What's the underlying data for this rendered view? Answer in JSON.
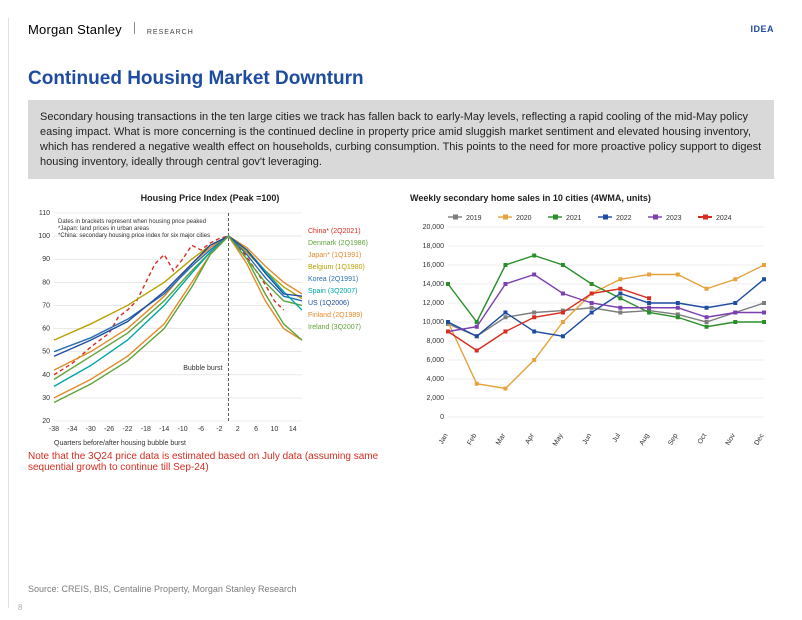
{
  "header": {
    "brand_main": "Morgan Stanley",
    "brand_sub": "RESEARCH",
    "right_mark": "IDEA"
  },
  "title": {
    "text": "Continued Housing Market Downturn",
    "color": "#1e4ca0"
  },
  "summary": {
    "text": "Secondary housing transactions in the ten large cities we track has fallen back to early-May levels, reflecting a rapid cooling of the mid-May policy easing impact. What is more concerning is the continued decline in property price amid sluggish market sentiment and elevated housing inventory, which has rendered a negative wealth effect on households, curbing consumption. This points to the need for more proactive policy support to digest housing inventory, ideally through central gov't leveraging.",
    "bg": "#d9d9d9"
  },
  "left_chart": {
    "type": "line",
    "title": "Housing Price Index (Peak =100)",
    "xlim": [
      -38,
      16
    ],
    "ylim": [
      20,
      110
    ],
    "ytick_step": 10,
    "xticks": [
      -38,
      -34,
      -30,
      -26,
      -22,
      -18,
      -14,
      -10,
      -6,
      -2,
      2,
      6,
      10,
      14
    ],
    "xlabel": "Quarters before/after housing bubble burst",
    "grid_color": "#dcdcdc",
    "bubble_x": 0,
    "bubble_label": "Bubble burst",
    "dates_note": "Dates in brackets represent when housing price peaked\n*Japan: land prices in urban areas\n*China: secondary housing price index for six major cities",
    "footnote": "Note that the 3Q24 price data is estimated based on July data (assuming same sequential growth to continue till Sep-24)",
    "footnote_color": "#d62d20",
    "legend": [
      {
        "label": "China* (2Q2021)",
        "color": "#d62d20",
        "dash": "4 3",
        "width": 1.8
      },
      {
        "label": "Denmark (2Q1986)",
        "color": "#5fa33a"
      },
      {
        "label": "Japan* (1Q1991)",
        "color": "#e38b2a"
      },
      {
        "label": "Belgium (1Q1980)",
        "color": "#b8a100"
      },
      {
        "label": "Korea (2Q1991)",
        "color": "#2a6fb0"
      },
      {
        "label": "Spain (3Q2007)",
        "color": "#00a6a6"
      },
      {
        "label": "US (1Q2006)",
        "color": "#1e4ca0"
      },
      {
        "label": "Finland (2Q1989)",
        "color": "#e38b2a"
      },
      {
        "label": "Ireland (3Q2007)",
        "color": "#5fa33a"
      }
    ],
    "series": [
      {
        "name": "China",
        "color": "#d62d20",
        "dash": "4 3",
        "width": 1.8,
        "pts": [
          [
            -38,
            40
          ],
          [
            -34,
            45
          ],
          [
            -30,
            52
          ],
          [
            -26,
            58
          ],
          [
            -24,
            65
          ],
          [
            -22,
            68
          ],
          [
            -20,
            72
          ],
          [
            -18,
            80
          ],
          [
            -16,
            88
          ],
          [
            -14,
            92
          ],
          [
            -12,
            85
          ],
          [
            -10,
            90
          ],
          [
            -8,
            96
          ],
          [
            -6,
            94
          ],
          [
            -4,
            97
          ],
          [
            -2,
            99
          ],
          [
            0,
            100
          ],
          [
            2,
            96
          ],
          [
            4,
            91
          ],
          [
            6,
            85
          ],
          [
            8,
            79
          ],
          [
            10,
            72
          ],
          [
            12,
            68
          ]
        ]
      },
      {
        "name": "Denmark",
        "color": "#5fa33a",
        "pts": [
          [
            -38,
            38
          ],
          [
            -30,
            48
          ],
          [
            -22,
            58
          ],
          [
            -14,
            72
          ],
          [
            -8,
            85
          ],
          [
            -4,
            93
          ],
          [
            0,
            100
          ],
          [
            4,
            90
          ],
          [
            8,
            80
          ],
          [
            12,
            72
          ],
          [
            16,
            70
          ]
        ]
      },
      {
        "name": "Japan",
        "color": "#e38b2a",
        "pts": [
          [
            -38,
            42
          ],
          [
            -30,
            50
          ],
          [
            -22,
            60
          ],
          [
            -14,
            74
          ],
          [
            -8,
            88
          ],
          [
            -4,
            95
          ],
          [
            0,
            100
          ],
          [
            4,
            95
          ],
          [
            8,
            87
          ],
          [
            12,
            80
          ],
          [
            16,
            75
          ]
        ]
      },
      {
        "name": "Belgium",
        "color": "#b8a100",
        "pts": [
          [
            -38,
            55
          ],
          [
            -30,
            62
          ],
          [
            -22,
            70
          ],
          [
            -14,
            80
          ],
          [
            -8,
            90
          ],
          [
            -4,
            96
          ],
          [
            0,
            100
          ],
          [
            4,
            93
          ],
          [
            8,
            85
          ],
          [
            12,
            78
          ],
          [
            16,
            73
          ]
        ]
      },
      {
        "name": "Korea",
        "color": "#2a6fb0",
        "pts": [
          [
            -38,
            50
          ],
          [
            -30,
            56
          ],
          [
            -22,
            64
          ],
          [
            -14,
            75
          ],
          [
            -8,
            87
          ],
          [
            -4,
            94
          ],
          [
            0,
            100
          ],
          [
            4,
            92
          ],
          [
            8,
            82
          ],
          [
            12,
            74
          ],
          [
            16,
            72
          ]
        ]
      },
      {
        "name": "Spain",
        "color": "#00a6a6",
        "pts": [
          [
            -38,
            35
          ],
          [
            -30,
            44
          ],
          [
            -22,
            55
          ],
          [
            -14,
            70
          ],
          [
            -8,
            84
          ],
          [
            -4,
            93
          ],
          [
            0,
            100
          ],
          [
            4,
            94
          ],
          [
            8,
            85
          ],
          [
            12,
            76
          ],
          [
            16,
            68
          ]
        ]
      },
      {
        "name": "US",
        "color": "#1e4ca0",
        "pts": [
          [
            -38,
            48
          ],
          [
            -30,
            55
          ],
          [
            -22,
            63
          ],
          [
            -14,
            76
          ],
          [
            -8,
            88
          ],
          [
            -4,
            96
          ],
          [
            0,
            100
          ],
          [
            4,
            94
          ],
          [
            8,
            84
          ],
          [
            12,
            75
          ],
          [
            16,
            74
          ]
        ]
      },
      {
        "name": "Finland",
        "color": "#e38b2a",
        "pts": [
          [
            -38,
            30
          ],
          [
            -30,
            38
          ],
          [
            -22,
            48
          ],
          [
            -14,
            62
          ],
          [
            -8,
            80
          ],
          [
            -4,
            92
          ],
          [
            0,
            100
          ],
          [
            4,
            88
          ],
          [
            8,
            72
          ],
          [
            12,
            60
          ],
          [
            16,
            55
          ]
        ]
      },
      {
        "name": "Ireland",
        "color": "#5fa33a",
        "pts": [
          [
            -38,
            28
          ],
          [
            -30,
            36
          ],
          [
            -22,
            46
          ],
          [
            -14,
            60
          ],
          [
            -8,
            78
          ],
          [
            -4,
            92
          ],
          [
            0,
            100
          ],
          [
            4,
            90
          ],
          [
            8,
            75
          ],
          [
            12,
            62
          ],
          [
            16,
            55
          ]
        ]
      }
    ]
  },
  "right_chart": {
    "type": "line",
    "title": "Weekly secondary home sales in 10 cities (4WMA, units)",
    "xlim": [
      1,
      12
    ],
    "ylim": [
      0,
      20000
    ],
    "ytick_step": 2000,
    "months": [
      "Jan",
      "Feb",
      "Mar",
      "Apr",
      "May",
      "Jun",
      "Jul",
      "Aug",
      "Sep",
      "Oct",
      "Nov",
      "Dec"
    ],
    "grid_color": "#dcdcdc",
    "legend": [
      {
        "label": "2019",
        "color": "#7d7d7d",
        "marker": "diamond"
      },
      {
        "label": "2020",
        "color": "#e6a23c",
        "marker": "triangle"
      },
      {
        "label": "2021",
        "color": "#2a8f2a",
        "marker": "circle"
      },
      {
        "label": "2022",
        "color": "#1e4ca0",
        "marker": "square"
      },
      {
        "label": "2023",
        "color": "#7b3fb0",
        "marker": "square"
      },
      {
        "label": "2024",
        "color": "#d62d20",
        "marker": "square",
        "width": 2.0
      }
    ],
    "series": [
      {
        "name": "2019",
        "color": "#7d7d7d",
        "pts": [
          [
            1,
            9800
          ],
          [
            2,
            8500
          ],
          [
            3,
            10500
          ],
          [
            4,
            11000
          ],
          [
            5,
            11200
          ],
          [
            6,
            11500
          ],
          [
            7,
            11000
          ],
          [
            8,
            11200
          ],
          [
            9,
            10800
          ],
          [
            10,
            10000
          ],
          [
            11,
            11000
          ],
          [
            12,
            12000
          ]
        ]
      },
      {
        "name": "2020",
        "color": "#e6a23c",
        "pts": [
          [
            1,
            10000
          ],
          [
            2,
            3500
          ],
          [
            3,
            3000
          ],
          [
            4,
            6000
          ],
          [
            5,
            10000
          ],
          [
            6,
            13000
          ],
          [
            7,
            14500
          ],
          [
            8,
            15000
          ],
          [
            9,
            15000
          ],
          [
            10,
            13500
          ],
          [
            11,
            14500
          ],
          [
            12,
            16000
          ]
        ]
      },
      {
        "name": "2021",
        "color": "#2a8f2a",
        "pts": [
          [
            1,
            14000
          ],
          [
            2,
            10000
          ],
          [
            3,
            16000
          ],
          [
            4,
            17000
          ],
          [
            5,
            16000
          ],
          [
            6,
            14000
          ],
          [
            7,
            12500
          ],
          [
            8,
            11000
          ],
          [
            9,
            10500
          ],
          [
            10,
            9500
          ],
          [
            11,
            10000
          ],
          [
            12,
            10000
          ]
        ]
      },
      {
        "name": "2022",
        "color": "#1e4ca0",
        "pts": [
          [
            1,
            10000
          ],
          [
            2,
            8500
          ],
          [
            3,
            11000
          ],
          [
            4,
            9000
          ],
          [
            5,
            8500
          ],
          [
            6,
            11000
          ],
          [
            7,
            13000
          ],
          [
            8,
            12000
          ],
          [
            9,
            12000
          ],
          [
            10,
            11500
          ],
          [
            11,
            12000
          ],
          [
            12,
            14500
          ]
        ]
      },
      {
        "name": "2023",
        "color": "#7b3fb0",
        "pts": [
          [
            1,
            9000
          ],
          [
            2,
            9500
          ],
          [
            3,
            14000
          ],
          [
            4,
            15000
          ],
          [
            5,
            13000
          ],
          [
            6,
            12000
          ],
          [
            7,
            11500
          ],
          [
            8,
            11500
          ],
          [
            9,
            11500
          ],
          [
            10,
            10500
          ],
          [
            11,
            11000
          ],
          [
            12,
            11000
          ]
        ]
      },
      {
        "name": "2024",
        "color": "#d62d20",
        "width": 2.0,
        "pts": [
          [
            1,
            9000
          ],
          [
            2,
            7000
          ],
          [
            3,
            9000
          ],
          [
            4,
            10500
          ],
          [
            5,
            11000
          ],
          [
            6,
            13000
          ],
          [
            7,
            13500
          ],
          [
            8,
            12500
          ]
        ]
      }
    ]
  },
  "source": "Source:  CREIS, BIS, Centaline Property, Morgan Stanley Research",
  "page_number": "8"
}
